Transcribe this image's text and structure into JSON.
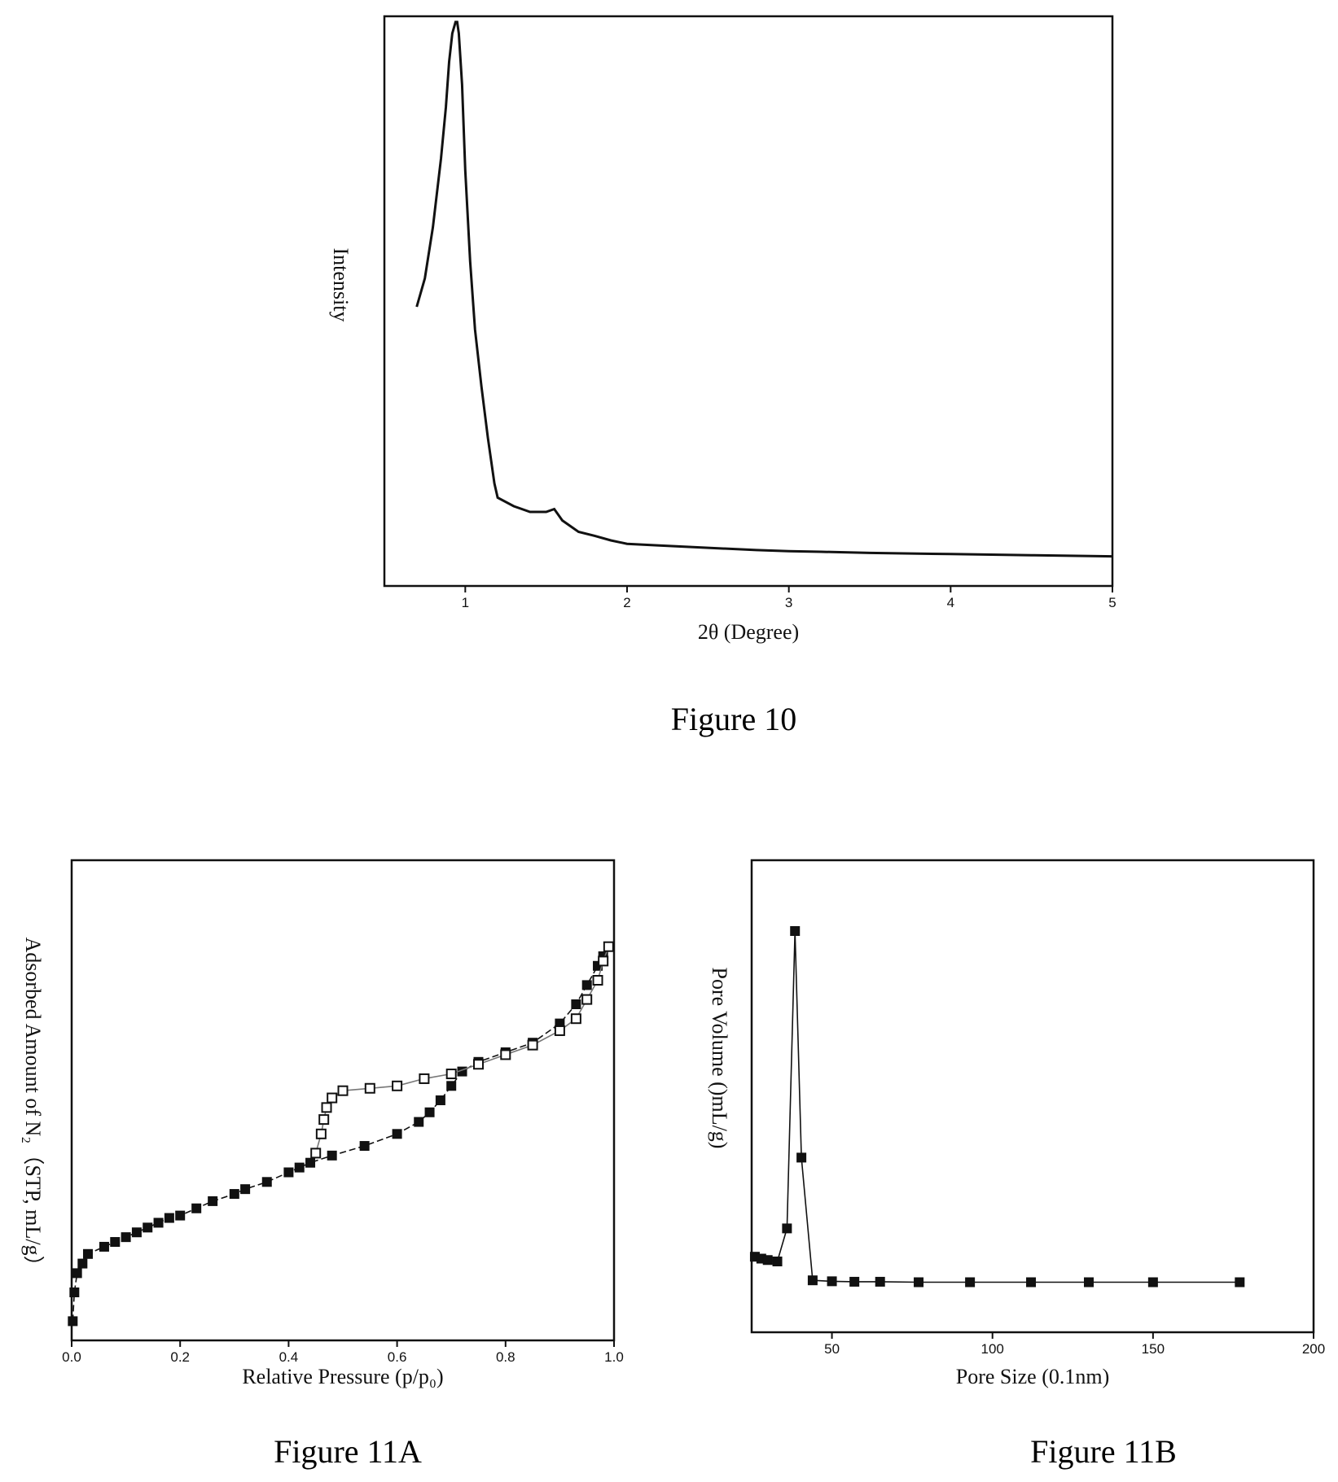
{
  "captions": {
    "fig10": "Figure 10",
    "fig11a": "Figure 11A",
    "fig11b": "Figure 11B"
  },
  "chart_data": [
    {
      "id": "fig10",
      "type": "line",
      "title": "",
      "xlabel": "2θ (Degree)",
      "ylabel": "Intensity",
      "xlim": [
        0.5,
        5
      ],
      "ylim": [
        0,
        100
      ],
      "xticks": [
        1,
        2,
        3,
        4,
        5
      ],
      "x_tick_labels": [
        "1",
        "2",
        "3",
        "4",
        "5"
      ],
      "y_ticks_shown": false,
      "grid": false,
      "series": [
        {
          "x": [
            0.7,
            0.75,
            0.8,
            0.85,
            0.88,
            0.9,
            0.92,
            0.94,
            0.95,
            0.96,
            0.98,
            1.0,
            1.03,
            1.06,
            1.1,
            1.14,
            1.18,
            1.2,
            1.3,
            1.4,
            1.5,
            1.55,
            1.6,
            1.7,
            1.8,
            1.9,
            2.0,
            2.2,
            2.5,
            2.8,
            3.0,
            3.2,
            3.5,
            4.0,
            4.5,
            5.0
          ],
          "y": [
            49,
            54,
            63,
            75,
            84,
            92,
            97,
            99,
            99,
            97,
            88,
            73,
            57,
            45,
            35,
            26,
            18,
            15.5,
            14,
            13,
            13,
            13.5,
            11.5,
            9.5,
            8.8,
            8,
            7.4,
            7.1,
            6.7,
            6.3,
            6.1,
            6.0,
            5.8,
            5.6,
            5.4,
            5.2
          ]
        }
      ]
    },
    {
      "id": "fig11a",
      "type": "line",
      "title": "",
      "xlabel": "Relative Pressure (p/p₀)",
      "ylabel": "Adsorbed Amount of N₂（STP, mL/g）",
      "xlim": [
        0,
        1
      ],
      "ylim": [
        0,
        100
      ],
      "xticks": [
        0,
        0.2,
        0.4,
        0.6,
        0.8,
        1.0
      ],
      "x_tick_labels": [
        "0.0",
        "0.2",
        "0.4",
        "0.6",
        "0.8",
        "1.0"
      ],
      "y_ticks_shown": false,
      "grid": false,
      "series": [
        {
          "name": "",
          "marker": "square",
          "x": [
            0.002,
            0.005,
            0.01,
            0.02,
            0.03,
            0.06,
            0.08,
            0.1,
            0.12,
            0.14,
            0.16,
            0.18,
            0.2,
            0.23,
            0.26,
            0.3,
            0.32,
            0.36,
            0.4,
            0.42,
            0.44,
            0.48,
            0.54,
            0.6,
            0.64,
            0.66,
            0.68,
            0.7,
            0.72,
            0.75,
            0.8,
            0.85,
            0.9,
            0.93,
            0.95,
            0.97,
            0.98,
            0.99
          ],
          "y": [
            4,
            10,
            14,
            16,
            18,
            19.5,
            20.5,
            21.5,
            22.5,
            23.5,
            24.5,
            25.5,
            26,
            27.5,
            29,
            30.5,
            31.5,
            33,
            35,
            36,
            37,
            38.5,
            40.5,
            43,
            45.5,
            47.5,
            50,
            53,
            56,
            58,
            60,
            62,
            66,
            70,
            74,
            78,
            80,
            82
          ]
        },
        {
          "name": "",
          "marker": "square-open",
          "x": [
            0.45,
            0.46,
            0.465,
            0.47,
            0.48,
            0.5,
            0.55,
            0.6,
            0.65,
            0.7,
            0.75,
            0.8,
            0.85,
            0.9,
            0.93,
            0.95,
            0.97,
            0.98,
            0.99
          ],
          "y": [
            39,
            43,
            46,
            48.5,
            50.5,
            52,
            52.5,
            53,
            54.5,
            55.5,
            57.5,
            59.5,
            61.5,
            64.5,
            67,
            71,
            75,
            79,
            82
          ]
        }
      ]
    },
    {
      "id": "fig11b",
      "type": "line",
      "title": "",
      "xlabel": "Pore Size (0.1nm)",
      "ylabel": "Pore Volume ()mL/g)",
      "xlim": [
        25,
        200
      ],
      "ylim": [
        0,
        100
      ],
      "xticks": [
        50,
        100,
        150,
        200
      ],
      "x_tick_labels": [
        "50",
        "100",
        "150",
        "200"
      ],
      "y_ticks_shown": false,
      "grid": false,
      "series": [
        {
          "name": "",
          "marker": "square",
          "x": [
            26,
            28,
            30,
            33,
            36,
            38.5,
            40.5,
            44,
            50,
            57,
            65,
            77,
            93,
            112,
            130,
            150,
            177
          ],
          "y": [
            16,
            15.6,
            15.3,
            15,
            22,
            85,
            37,
            11,
            10.8,
            10.7,
            10.7,
            10.6,
            10.6,
            10.6,
            10.6,
            10.6,
            10.6
          ]
        }
      ]
    }
  ]
}
